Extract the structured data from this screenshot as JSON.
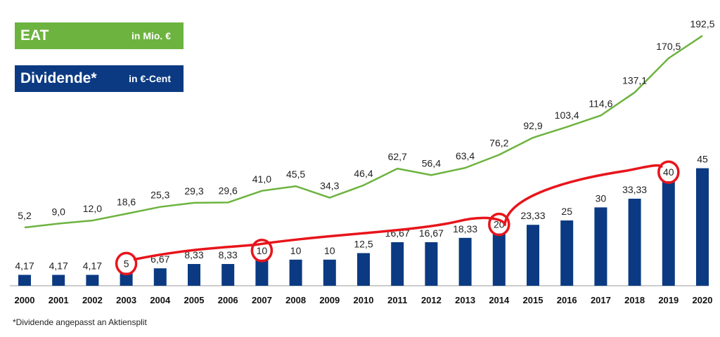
{
  "legend": {
    "eat_name": "EAT",
    "eat_unit": "in Mio. €",
    "div_name": "Dividende*",
    "div_unit": "in €-Cent"
  },
  "footnote": "*Dividende angepasst an Aktiensplit",
  "colors": {
    "eat": "#6db33f",
    "dividend": "#0b3a82",
    "annotation": "#e8141b",
    "axis": "#bbbbbb"
  },
  "chart_data": {
    "type": "bar",
    "categories": [
      "2000",
      "2001",
      "2002",
      "2003",
      "2004",
      "2005",
      "2006",
      "2007",
      "2008",
      "2009",
      "2010",
      "2011",
      "2012",
      "2013",
      "2014",
      "2015",
      "2016",
      "2017",
      "2018",
      "2019",
      "2020"
    ],
    "series": [
      {
        "name": "Dividende*",
        "type": "bar",
        "unit": "€-Cent",
        "values": [
          4.17,
          4.17,
          4.17,
          5,
          6.67,
          8.33,
          8.33,
          10,
          10,
          10,
          12.5,
          16.67,
          16.67,
          18.33,
          20,
          23.33,
          25,
          30,
          33.33,
          40,
          45
        ],
        "labels": [
          "4,17",
          "4,17",
          "4,17",
          "5",
          "6,67",
          "8,33",
          "8,33",
          "10",
          "10",
          "10",
          "12,5",
          "16,67",
          "16,67",
          "18,33",
          "20",
          "23,33",
          "25",
          "30",
          "33,33",
          "40",
          "45"
        ]
      },
      {
        "name": "EAT",
        "type": "line",
        "unit": "Mio. €",
        "values": [
          5.2,
          9.0,
          12.0,
          18.6,
          25.3,
          29.3,
          29.6,
          41.0,
          45.5,
          34.3,
          46.4,
          62.7,
          56.4,
          63.4,
          76.2,
          92.9,
          103.4,
          114.6,
          137.1,
          170.5,
          192.5
        ],
        "labels": [
          "5,2",
          "9,0",
          "12,0",
          "18,6",
          "25,3",
          "29,3",
          "29,6",
          "41,0",
          "45,5",
          "34,3",
          "46,4",
          "62,7",
          "56,4",
          "63,4",
          "76,2",
          "92,9",
          "103,4",
          "114,6",
          "137,1",
          "170,5",
          "192,5"
        ]
      }
    ],
    "annotations": {
      "circled_years": [
        "2003",
        "2007",
        "2014",
        "2019"
      ],
      "trend_stroke": "red hand-drawn line connecting circled dividends"
    }
  }
}
